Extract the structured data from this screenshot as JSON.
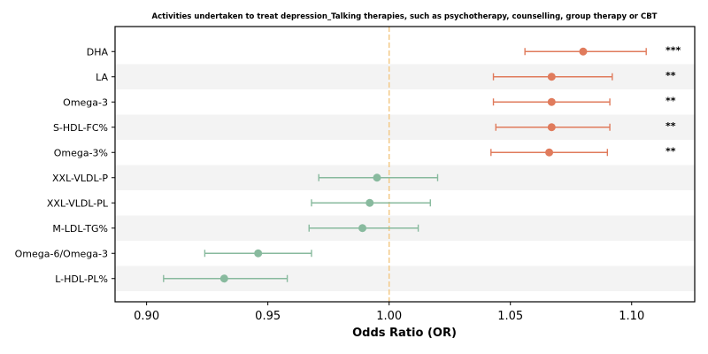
{
  "chart_data": {
    "type": "forest",
    "title": "Activities undertaken to treat depression_Talking therapies, such as psychotherapy, counselling, group therapy or CBT",
    "xlabel": "Odds Ratio (OR)",
    "xlim": [
      0.887,
      1.126
    ],
    "xticks": [
      0.9,
      0.95,
      1.0,
      1.05,
      1.1
    ],
    "xtick_labels": [
      "0.90",
      "0.95",
      "1.00",
      "1.05",
      "1.10"
    ],
    "reference_line": 1.0,
    "alternating_row_shading": true,
    "colors": {
      "positive": "#E07B5C",
      "negative": "#88BA9E",
      "reference_line": "#F3C987",
      "stripe": "#F3F3F3"
    },
    "rows": [
      {
        "label": "DHA",
        "or": 1.08,
        "ci_low": 1.056,
        "ci_high": 1.106,
        "significance": "***",
        "direction": "positive"
      },
      {
        "label": "LA",
        "or": 1.067,
        "ci_low": 1.043,
        "ci_high": 1.092,
        "significance": "**",
        "direction": "positive"
      },
      {
        "label": "Omega-3",
        "or": 1.067,
        "ci_low": 1.043,
        "ci_high": 1.091,
        "significance": "**",
        "direction": "positive"
      },
      {
        "label": "S-HDL-FC%",
        "or": 1.067,
        "ci_low": 1.044,
        "ci_high": 1.091,
        "significance": "**",
        "direction": "positive"
      },
      {
        "label": "Omega-3%",
        "or": 1.066,
        "ci_low": 1.042,
        "ci_high": 1.09,
        "significance": "**",
        "direction": "positive"
      },
      {
        "label": "XXL-VLDL-P",
        "or": 0.995,
        "ci_low": 0.971,
        "ci_high": 1.02,
        "significance": "",
        "direction": "negative"
      },
      {
        "label": "XXL-VLDL-PL",
        "or": 0.992,
        "ci_low": 0.968,
        "ci_high": 1.017,
        "significance": "",
        "direction": "negative"
      },
      {
        "label": "M-LDL-TG%",
        "or": 0.989,
        "ci_low": 0.967,
        "ci_high": 1.012,
        "significance": "",
        "direction": "negative"
      },
      {
        "label": "Omega-6/Omega-3",
        "or": 0.946,
        "ci_low": 0.924,
        "ci_high": 0.968,
        "significance": "",
        "direction": "negative"
      },
      {
        "label": "L-HDL-PL%",
        "or": 0.932,
        "ci_low": 0.907,
        "ci_high": 0.958,
        "significance": "",
        "direction": "negative"
      }
    ]
  }
}
